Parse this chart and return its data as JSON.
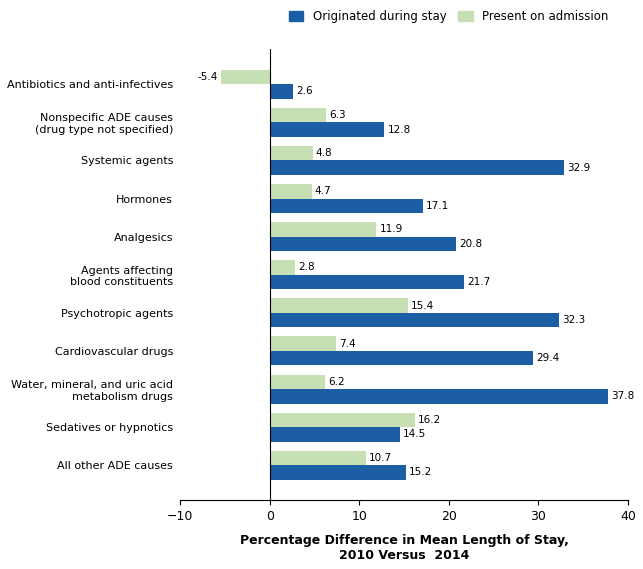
{
  "categories": [
    "Antibiotics and anti-infectives",
    "Nonspecific ADE causes\n(drug type not specified)",
    "Systemic agents",
    "Hormones",
    "Analgesics",
    "Agents affecting\nblood constituents",
    "Psychotropic agents",
    "Cardiovascular drugs",
    "Water, mineral, and uric acid\nmetabolism drugs",
    "Sedatives or hypnotics",
    "All other ADE causes"
  ],
  "originated_during_stay": [
    2.6,
    12.8,
    32.9,
    17.1,
    20.8,
    21.7,
    32.3,
    29.4,
    37.8,
    14.5,
    15.2
  ],
  "present_on_admission": [
    -5.4,
    6.3,
    4.8,
    4.7,
    11.9,
    2.8,
    15.4,
    7.4,
    6.2,
    16.2,
    10.7
  ],
  "originated_color": "#1B5EA6",
  "admission_color": "#C6E0B4",
  "xlabel": "Percentage Difference in Mean Length of Stay,\n2010 Versus  2014",
  "xlim": [
    -10,
    40
  ],
  "xticks": [
    -10,
    0,
    10,
    20,
    30,
    40
  ],
  "legend_labels": [
    "Originated during stay",
    "Present on admission"
  ],
  "bar_height": 0.38,
  "figure_width": 6.43,
  "figure_height": 5.69
}
